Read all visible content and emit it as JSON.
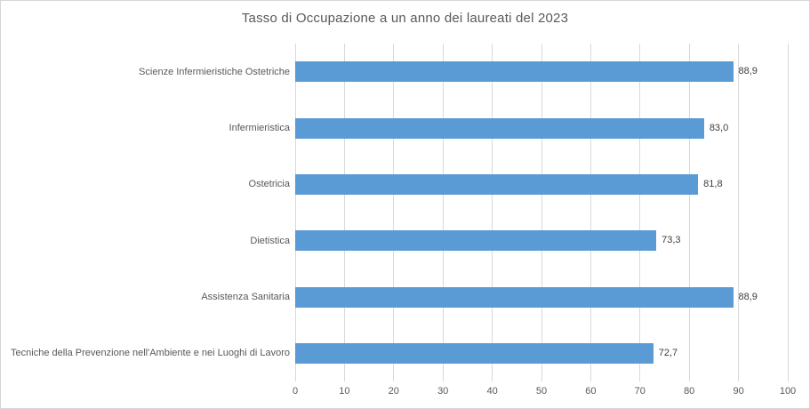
{
  "chart_data": {
    "type": "bar",
    "orientation": "horizontal",
    "title": "Tasso di Occupazione a un anno dei laureati del 2023",
    "categories": [
      "Scienze Infermieristiche Ostetriche",
      "Infermieristica",
      "Ostetricia",
      "Dietistica",
      "Assistenza Sanitaria",
      "Tecniche della Prevenzione nell'Ambiente e nei Luoghi di Lavoro"
    ],
    "values": [
      88.9,
      83.0,
      81.8,
      73.3,
      88.9,
      72.7
    ],
    "value_labels": [
      "88,9",
      "83,0",
      "81,8",
      "73,3",
      "88,9",
      "72,7"
    ],
    "xlabel": "",
    "ylabel": "",
    "xlim": [
      0,
      100
    ],
    "x_ticks": [
      "0",
      "10",
      "20",
      "30",
      "40",
      "50",
      "60",
      "70",
      "80",
      "90",
      "100"
    ],
    "grid": "vertical-only",
    "legend": "none",
    "bar_color": "#5b9bd5",
    "gridline_color": "#d9d9d9",
    "title_color": "#595959",
    "axis_text_color": "#595959",
    "value_text_color": "#404040"
  }
}
